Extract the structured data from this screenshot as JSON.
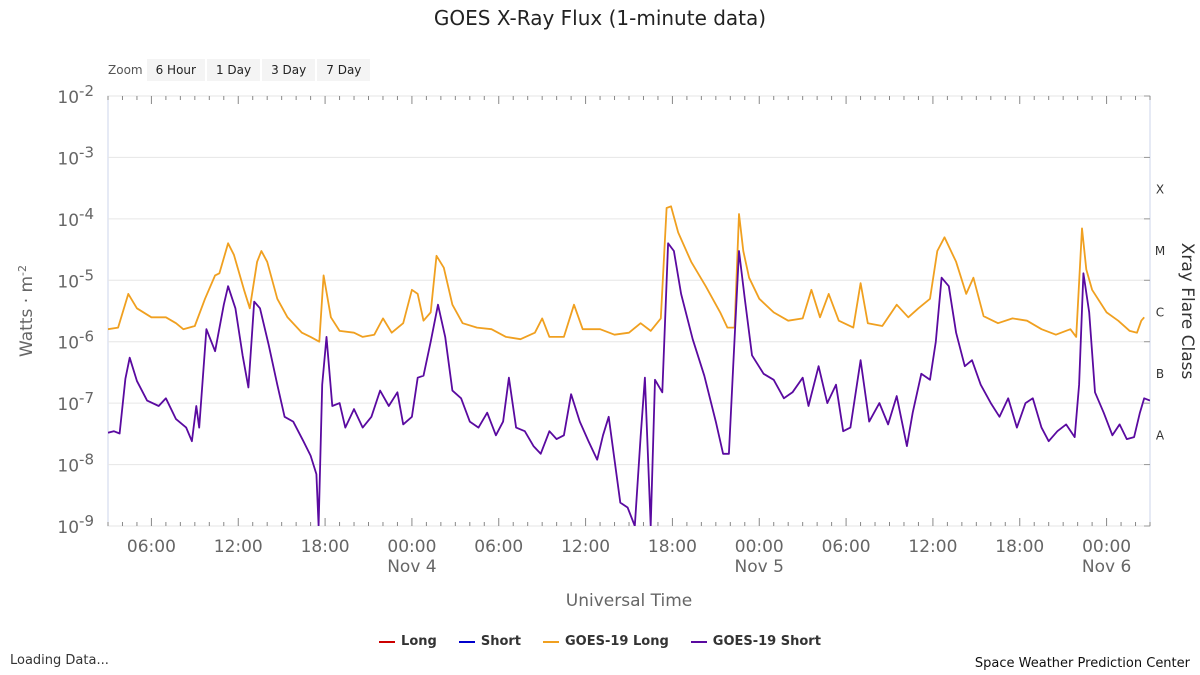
{
  "title": "GOES X-Ray Flux (1-minute data)",
  "zoom": {
    "label": "Zoom",
    "buttons": [
      "6 Hour",
      "1 Day",
      "3 Day",
      "7 Day"
    ]
  },
  "footer": {
    "loading": "Loading Data...",
    "credit": "Space Weather Prediction Center"
  },
  "chart_data": {
    "type": "line",
    "title": "GOES X-Ray Flux (1-minute data)",
    "xlabel": "Universal Time",
    "ylabel": "Watts · m",
    "ylabel_superscript": "-2",
    "y2label": "Xray Flare Class",
    "y_scale": "log",
    "ylim": [
      1e-09,
      0.01
    ],
    "y_ticks": [
      {
        "base": "10",
        "exp": "-2",
        "value": 0.01
      },
      {
        "base": "10",
        "exp": "-3",
        "value": 0.001
      },
      {
        "base": "10",
        "exp": "-4",
        "value": 0.0001
      },
      {
        "base": "10",
        "exp": "-5",
        "value": 1e-05
      },
      {
        "base": "10",
        "exp": "-6",
        "value": 1e-06
      },
      {
        "base": "10",
        "exp": "-7",
        "value": 1e-07
      },
      {
        "base": "10",
        "exp": "-8",
        "value": 1e-08
      },
      {
        "base": "10",
        "exp": "-9",
        "value": 1e-09
      }
    ],
    "flare_classes": [
      {
        "label": "X",
        "value": 0.0003
      },
      {
        "label": "M",
        "value": 3e-05
      },
      {
        "label": "C",
        "value": 3e-06
      },
      {
        "label": "B",
        "value": 3e-07
      },
      {
        "label": "A",
        "value": 3e-08
      }
    ],
    "x_unit": "hours from Nov 4 00:00 UT",
    "xlim": [
      -21,
      51
    ],
    "x_ticks": [
      {
        "value": -18,
        "label": "06:00",
        "date": ""
      },
      {
        "value": -12,
        "label": "12:00",
        "date": ""
      },
      {
        "value": -6,
        "label": "18:00",
        "date": ""
      },
      {
        "value": 0,
        "label": "00:00",
        "date": "Nov 4"
      },
      {
        "value": 6,
        "label": "06:00",
        "date": ""
      },
      {
        "value": 12,
        "label": "12:00",
        "date": ""
      },
      {
        "value": 18,
        "label": "18:00",
        "date": ""
      },
      {
        "value": 24,
        "label": "00:00",
        "date": "Nov 5"
      },
      {
        "value": 30,
        "label": "06:00",
        "date": ""
      },
      {
        "value": 36,
        "label": "12:00",
        "date": ""
      },
      {
        "value": 42,
        "label": "18:00",
        "date": ""
      },
      {
        "value": 48,
        "label": "00:00",
        "date": "Nov 6"
      }
    ],
    "series": [
      {
        "name": "Long",
        "color": "#cc0000",
        "points": []
      },
      {
        "name": "Short",
        "color": "#0000cc",
        "points": []
      },
      {
        "name": "GOES-19 Long",
        "color": "#f0a020",
        "points": [
          [
            -21,
            1.6e-06
          ],
          [
            -20.3,
            1.7e-06
          ],
          [
            -19.6,
            6e-06
          ],
          [
            -19,
            3.5e-06
          ],
          [
            -18,
            2.5e-06
          ],
          [
            -17,
            2.5e-06
          ],
          [
            -16.3,
            2e-06
          ],
          [
            -15.8,
            1.6e-06
          ],
          [
            -15,
            1.8e-06
          ],
          [
            -14.3,
            5e-06
          ],
          [
            -13.6,
            1.2e-05
          ],
          [
            -13.3,
            1.3e-05
          ],
          [
            -12.7,
            4e-05
          ],
          [
            -12.3,
            2.6e-05
          ],
          [
            -11.6,
            7e-06
          ],
          [
            -11.2,
            3.5e-06
          ],
          [
            -10.7,
            2e-05
          ],
          [
            -10.4,
            3e-05
          ],
          [
            -10,
            2e-05
          ],
          [
            -9.3,
            5e-06
          ],
          [
            -8.6,
            2.5e-06
          ],
          [
            -7.6,
            1.4e-06
          ],
          [
            -7,
            1.2e-06
          ],
          [
            -6.4,
            1e-06
          ],
          [
            -6.1,
            1.2e-05
          ],
          [
            -5.6,
            2.5e-06
          ],
          [
            -5,
            1.5e-06
          ],
          [
            -4,
            1.4e-06
          ],
          [
            -3.4,
            1.2e-06
          ],
          [
            -2.6,
            1.3e-06
          ],
          [
            -2,
            2.4e-06
          ],
          [
            -1.4,
            1.4e-06
          ],
          [
            -0.6,
            2e-06
          ],
          [
            0,
            7e-06
          ],
          [
            0.4,
            6e-06
          ],
          [
            0.8,
            2.2e-06
          ],
          [
            1.3,
            3e-06
          ],
          [
            1.7,
            2.5e-05
          ],
          [
            2.2,
            1.6e-05
          ],
          [
            2.8,
            4e-06
          ],
          [
            3.5,
            2e-06
          ],
          [
            4.5,
            1.7e-06
          ],
          [
            5.5,
            1.6e-06
          ],
          [
            6.5,
            1.2e-06
          ],
          [
            7.5,
            1.1e-06
          ],
          [
            8.5,
            1.4e-06
          ],
          [
            9,
            2.4e-06
          ],
          [
            9.5,
            1.2e-06
          ],
          [
            10.5,
            1.2e-06
          ],
          [
            11.2,
            4e-06
          ],
          [
            11.8,
            1.6e-06
          ],
          [
            13,
            1.6e-06
          ],
          [
            14,
            1.3e-06
          ],
          [
            15,
            1.4e-06
          ],
          [
            15.8,
            2e-06
          ],
          [
            16.5,
            1.5e-06
          ],
          [
            17.2,
            2.4e-06
          ],
          [
            17.6,
            0.00015
          ],
          [
            17.9,
            0.00016
          ],
          [
            18.4,
            6e-05
          ],
          [
            19.3,
            2e-05
          ],
          [
            20.3,
            8e-06
          ],
          [
            21.3,
            3e-06
          ],
          [
            21.8,
            1.7e-06
          ],
          [
            22.3,
            1.7e-06
          ],
          [
            22.6,
            0.00012
          ],
          [
            22.9,
            3e-05
          ],
          [
            23.3,
            1.1e-05
          ],
          [
            24,
            5e-06
          ],
          [
            25,
            3e-06
          ],
          [
            26,
            2.2e-06
          ],
          [
            27,
            2.4e-06
          ],
          [
            27.6,
            7e-06
          ],
          [
            28.2,
            2.5e-06
          ],
          [
            28.8,
            6e-06
          ],
          [
            29.5,
            2.2e-06
          ],
          [
            30.5,
            1.7e-06
          ],
          [
            31,
            9e-06
          ],
          [
            31.5,
            2e-06
          ],
          [
            32.5,
            1.8e-06
          ],
          [
            33.5,
            4e-06
          ],
          [
            34.3,
            2.5e-06
          ],
          [
            35,
            3.5e-06
          ],
          [
            35.8,
            5e-06
          ],
          [
            36.3,
            3e-05
          ],
          [
            36.8,
            5e-05
          ],
          [
            37.6,
            2e-05
          ],
          [
            38.3,
            6e-06
          ],
          [
            38.8,
            1.1e-05
          ],
          [
            39.5,
            2.6e-06
          ],
          [
            40.5,
            2e-06
          ],
          [
            41.5,
            2.4e-06
          ],
          [
            42.5,
            2.2e-06
          ],
          [
            43.5,
            1.6e-06
          ],
          [
            44.5,
            1.3e-06
          ],
          [
            45.5,
            1.6e-06
          ],
          [
            45.9,
            1.2e-06
          ],
          [
            46.3,
            7e-05
          ],
          [
            46.6,
            1.5e-05
          ],
          [
            47,
            7e-06
          ],
          [
            48,
            3e-06
          ],
          [
            48.8,
            2.2e-06
          ],
          [
            49.6,
            1.5e-06
          ],
          [
            50.1,
            1.4e-06
          ],
          [
            50.4,
            2.2e-06
          ],
          [
            50.6,
            2.5e-06
          ]
        ]
      },
      {
        "name": "GOES-19 Short",
        "color": "#5a0aa0",
        "points": [
          [
            -21,
            3.3e-08
          ],
          [
            -20.6,
            3.5e-08
          ],
          [
            -20.2,
            3.2e-08
          ],
          [
            -19.8,
            2.5e-07
          ],
          [
            -19.5,
            5.5e-07
          ],
          [
            -19,
            2.3e-07
          ],
          [
            -18.3,
            1.1e-07
          ],
          [
            -17.5,
            9e-08
          ],
          [
            -17,
            1.2e-07
          ],
          [
            -16.3,
            5.5e-08
          ],
          [
            -15.6,
            4e-08
          ],
          [
            -15.2,
            2.4e-08
          ],
          [
            -14.9,
            9e-08
          ],
          [
            -14.7,
            4e-08
          ],
          [
            -14.2,
            1.6e-06
          ],
          [
            -13.6,
            7e-07
          ],
          [
            -13,
            4e-06
          ],
          [
            -12.7,
            8e-06
          ],
          [
            -12.2,
            3.5e-06
          ],
          [
            -11.7,
            6e-07
          ],
          [
            -11.3,
            1.8e-07
          ],
          [
            -10.9,
            4.5e-06
          ],
          [
            -10.5,
            3.5e-06
          ],
          [
            -9.9,
            9e-07
          ],
          [
            -9.3,
            2e-07
          ],
          [
            -8.8,
            6e-08
          ],
          [
            -8.2,
            5e-08
          ],
          [
            -7.5,
            2.4e-08
          ],
          [
            -7,
            1.4e-08
          ],
          [
            -6.6,
            7e-09
          ],
          [
            -6.45,
            1e-09
          ],
          [
            -6.2,
            2e-07
          ],
          [
            -5.9,
            1.2e-06
          ],
          [
            -5.5,
            9e-08
          ],
          [
            -5,
            1e-07
          ],
          [
            -4.6,
            4e-08
          ],
          [
            -4,
            8e-08
          ],
          [
            -3.4,
            4e-08
          ],
          [
            -2.8,
            6e-08
          ],
          [
            -2.2,
            1.6e-07
          ],
          [
            -1.6,
            9e-08
          ],
          [
            -1,
            1.5e-07
          ],
          [
            -0.6,
            4.5e-08
          ],
          [
            0,
            6e-08
          ],
          [
            0.4,
            2.6e-07
          ],
          [
            0.8,
            2.8e-07
          ],
          [
            1.3,
            1e-06
          ],
          [
            1.8,
            4e-06
          ],
          [
            2.3,
            1.2e-06
          ],
          [
            2.8,
            1.6e-07
          ],
          [
            3.4,
            1.2e-07
          ],
          [
            4,
            5e-08
          ],
          [
            4.6,
            4e-08
          ],
          [
            5.2,
            7e-08
          ],
          [
            5.8,
            3e-08
          ],
          [
            6.3,
            5e-08
          ],
          [
            6.7,
            2.6e-07
          ],
          [
            7.2,
            4e-08
          ],
          [
            7.8,
            3.5e-08
          ],
          [
            8.4,
            2e-08
          ],
          [
            8.9,
            1.5e-08
          ],
          [
            9.5,
            3.5e-08
          ],
          [
            10,
            2.6e-08
          ],
          [
            10.5,
            3e-08
          ],
          [
            11,
            1.4e-07
          ],
          [
            11.6,
            5e-08
          ],
          [
            12.2,
            2.4e-08
          ],
          [
            12.8,
            1.2e-08
          ],
          [
            13.2,
            3e-08
          ],
          [
            13.6,
            6e-08
          ],
          [
            14,
            1.2e-08
          ],
          [
            14.4,
            2.4e-09
          ],
          [
            14.9,
            2e-09
          ],
          [
            15.4,
            1e-09
          ],
          [
            15.8,
            2.8e-08
          ],
          [
            16.1,
            2.6e-07
          ],
          [
            16.5,
            1e-09
          ],
          [
            16.8,
            2.4e-07
          ],
          [
            17.3,
            1.5e-07
          ],
          [
            17.7,
            4e-05
          ],
          [
            18.1,
            3e-05
          ],
          [
            18.6,
            6e-06
          ],
          [
            19.4,
            1.1e-06
          ],
          [
            20.2,
            2.8e-07
          ],
          [
            21,
            5e-08
          ],
          [
            21.5,
            1.5e-08
          ],
          [
            21.9,
            1.5e-08
          ],
          [
            22.2,
            4e-07
          ],
          [
            22.6,
            3e-05
          ],
          [
            23,
            5e-06
          ],
          [
            23.5,
            6e-07
          ],
          [
            24.3,
            3e-07
          ],
          [
            25,
            2.4e-07
          ],
          [
            25.7,
            1.2e-07
          ],
          [
            26.3,
            1.5e-07
          ],
          [
            27,
            2.6e-07
          ],
          [
            27.4,
            9e-08
          ],
          [
            28.1,
            4e-07
          ],
          [
            28.7,
            1e-07
          ],
          [
            29.3,
            2e-07
          ],
          [
            29.8,
            3.5e-08
          ],
          [
            30.3,
            4e-08
          ],
          [
            31,
            5e-07
          ],
          [
            31.6,
            5e-08
          ],
          [
            32.3,
            1e-07
          ],
          [
            32.9,
            4.5e-08
          ],
          [
            33.5,
            1.3e-07
          ],
          [
            34.2,
            2e-08
          ],
          [
            34.6,
            7e-08
          ],
          [
            35.2,
            3e-07
          ],
          [
            35.8,
            2.4e-07
          ],
          [
            36.2,
            1e-06
          ],
          [
            36.6,
            1.1e-05
          ],
          [
            37.1,
            8e-06
          ],
          [
            37.6,
            1.4e-06
          ],
          [
            38.2,
            4e-07
          ],
          [
            38.7,
            5e-07
          ],
          [
            39.3,
            2e-07
          ],
          [
            40,
            1e-07
          ],
          [
            40.6,
            6e-08
          ],
          [
            41.2,
            1.2e-07
          ],
          [
            41.8,
            4e-08
          ],
          [
            42.4,
            1e-07
          ],
          [
            42.9,
            1.2e-07
          ],
          [
            43.5,
            4e-08
          ],
          [
            44,
            2.4e-08
          ],
          [
            44.6,
            3.5e-08
          ],
          [
            45.2,
            4.5e-08
          ],
          [
            45.8,
            2.8e-08
          ],
          [
            46.1,
            2e-07
          ],
          [
            46.4,
            1.3e-05
          ],
          [
            46.8,
            3e-06
          ],
          [
            47.2,
            1.5e-07
          ],
          [
            47.8,
            7e-08
          ],
          [
            48.4,
            3e-08
          ],
          [
            48.9,
            4.5e-08
          ],
          [
            49.4,
            2.6e-08
          ],
          [
            49.9,
            2.8e-08
          ],
          [
            50.3,
            7e-08
          ],
          [
            50.6,
            1.2e-07
          ],
          [
            51,
            1.1e-07
          ]
        ]
      }
    ]
  }
}
